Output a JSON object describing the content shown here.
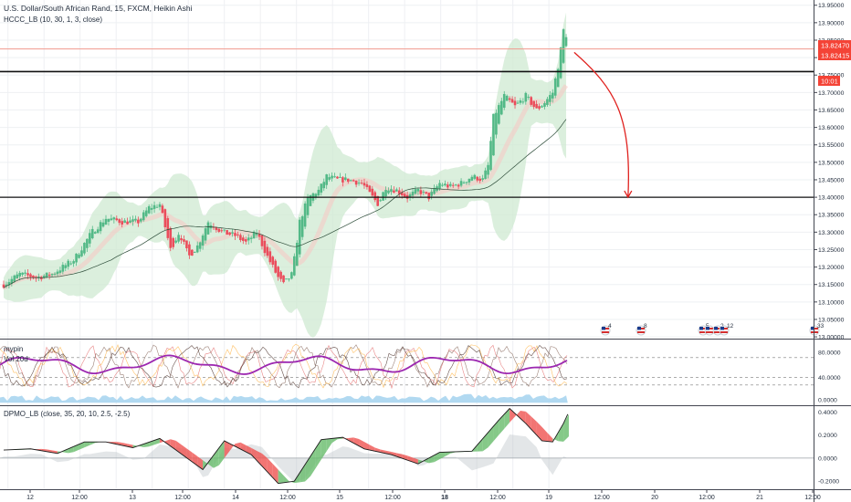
{
  "header": {
    "title": "U.S. Dollar/South African Rand, 15, FXCM, Heikin Ashi",
    "indicator": "HCCC_LB (10, 30, 1, 3, close)"
  },
  "price_badges": {
    "current": "13.82470",
    "second": "13.82415",
    "countdown": "10:01"
  },
  "subpanels": {
    "oscillator_label_1": "mypin",
    "oscillator_label_2": "Vol 20d",
    "dpmo_label": "DPMO_LB (close, 35, 20, 10, 2.5, -2.5)"
  },
  "events": [
    {
      "label": "4"
    },
    {
      "label": "8"
    },
    {
      "label": "5"
    },
    {
      "label": "2"
    },
    {
      "label": "12"
    },
    {
      "label": "33"
    }
  ],
  "colors": {
    "up": "#53b987",
    "down": "#eb4d5c",
    "band": "#cfe9d1",
    "arrow": "#e0211e",
    "level": "#111111",
    "accent_line": "#f19a8e",
    "badge": "#f44336",
    "osc_line": "#9c27b0",
    "volume": "#a8d5ef",
    "text": "#1f2a3a",
    "grid": "#eef0f3"
  },
  "chart_data": {
    "type": "candlestick",
    "style": "Heikin Ashi",
    "symbol": "U.S. Dollar/South African Rand",
    "interval": "15",
    "source": "FXCM",
    "x_ticks": [
      "12",
      "12:00",
      "13",
      "12:00",
      "14",
      "12:00",
      "15",
      "12:00",
      "18",
      "12:00",
      "19",
      "12:00",
      "20",
      "12:00",
      "21",
      "12:00"
    ],
    "price_axis": {
      "ticks": [
        13.95,
        13.9,
        13.85,
        13.8,
        13.75,
        13.7,
        13.65,
        13.6,
        13.55,
        13.5,
        13.45,
        13.4,
        13.35,
        13.3,
        13.25,
        13.2,
        13.15,
        13.1,
        13.05,
        13.0
      ],
      "tick_labels": [
        "13.95000",
        "13.90000",
        "13.85000",
        "13.80000",
        "13.75000",
        "13.70000",
        "13.65000",
        "13.60000",
        "13.55000",
        "13.50000",
        "13.45000",
        "13.40000",
        "13.35000",
        "13.30000",
        "13.25000",
        "13.20000",
        "13.15000",
        "13.10000",
        "13.05000",
        "13.00000"
      ],
      "ylim": [
        12.995,
        13.965
      ]
    },
    "close_path": [
      [
        0.0,
        13.15
      ],
      [
        1.5,
        13.18
      ],
      [
        3.0,
        13.17
      ],
      [
        4.5,
        13.18
      ],
      [
        6.5,
        13.22
      ],
      [
        8.2,
        13.3
      ],
      [
        9.5,
        13.34
      ],
      [
        11.0,
        13.33
      ],
      [
        12.5,
        13.33
      ],
      [
        13.5,
        13.37
      ],
      [
        14.5,
        13.38
      ],
      [
        15.5,
        13.25
      ],
      [
        16.3,
        13.3
      ],
      [
        17.2,
        13.23
      ],
      [
        18.0,
        13.26
      ],
      [
        19.0,
        13.33
      ],
      [
        20.3,
        13.3
      ],
      [
        21.5,
        13.29
      ],
      [
        22.5,
        13.27
      ],
      [
        23.5,
        13.3
      ],
      [
        24.5,
        13.23
      ],
      [
        25.5,
        13.17
      ],
      [
        26.0,
        13.15
      ],
      [
        26.8,
        13.18
      ],
      [
        27.5,
        13.33
      ],
      [
        28.3,
        13.4
      ],
      [
        29.3,
        13.42
      ],
      [
        30.0,
        13.46
      ],
      [
        31.0,
        13.45
      ],
      [
        32.0,
        13.45
      ],
      [
        33.3,
        13.44
      ],
      [
        34.0,
        13.41
      ],
      [
        34.8,
        13.38
      ],
      [
        35.5,
        13.43
      ],
      [
        36.5,
        13.42
      ],
      [
        37.5,
        13.4
      ],
      [
        38.5,
        13.42
      ],
      [
        39.5,
        13.4
      ],
      [
        40.5,
        13.44
      ],
      [
        41.5,
        13.43
      ],
      [
        42.5,
        13.44
      ],
      [
        43.5,
        13.46
      ],
      [
        44.5,
        13.45
      ],
      [
        45.0,
        13.49
      ],
      [
        45.5,
        13.63
      ],
      [
        46.5,
        13.69
      ],
      [
        47.5,
        13.66
      ],
      [
        48.5,
        13.69
      ],
      [
        49.5,
        13.65
      ],
      [
        50.2,
        13.67
      ],
      [
        51.0,
        13.7
      ],
      [
        51.6,
        13.79
      ],
      [
        52.1,
        13.9
      ],
      [
        52.4,
        13.83
      ]
    ],
    "levels": [
      13.76,
      13.4
    ],
    "last_prices": [
      13.8247,
      13.82415
    ],
    "annotation": {
      "type": "arrow",
      "from": [
        53.0,
        13.815
      ],
      "to": [
        58.0,
        13.4
      ]
    },
    "oscillator": {
      "labels": [
        "mypin",
        "Vol 20d"
      ],
      "ticks": [
        0,
        40,
        80
      ],
      "tick_labels": [
        "0.0000",
        "40.0000",
        "80.0000"
      ],
      "ylim": [
        -4,
        100
      ]
    },
    "dpmo": {
      "label": "DPMO_LB (close, 35, 20, 10, 2.5, -2.5)",
      "ticks": [
        -0.2,
        0.0,
        0.2,
        0.4
      ],
      "tick_labels": [
        "-0.2000",
        "0.0000",
        "0.2000",
        "0.4000"
      ],
      "ylim": [
        -0.27,
        0.45
      ],
      "path": [
        [
          0.0,
          0.07
        ],
        [
          2.5,
          0.08
        ],
        [
          5.0,
          0.04
        ],
        [
          7.5,
          0.14
        ],
        [
          9.5,
          0.14
        ],
        [
          12.0,
          0.09
        ],
        [
          14.5,
          0.17
        ],
        [
          16.0,
          0.07
        ],
        [
          18.5,
          -0.1
        ],
        [
          20.5,
          0.15
        ],
        [
          23.0,
          0.03
        ],
        [
          25.5,
          -0.22
        ],
        [
          27.0,
          -0.2
        ],
        [
          29.5,
          0.16
        ],
        [
          31.5,
          0.18
        ],
        [
          33.5,
          0.08
        ],
        [
          36.0,
          0.03
        ],
        [
          38.5,
          -0.05
        ],
        [
          40.5,
          0.05
        ],
        [
          43.5,
          0.06
        ],
        [
          46.0,
          0.33
        ],
        [
          47.0,
          0.43
        ],
        [
          48.5,
          0.3
        ],
        [
          50.0,
          0.15
        ],
        [
          51.0,
          0.14
        ],
        [
          52.0,
          0.3
        ],
        [
          52.4,
          0.38
        ]
      ]
    },
    "grid": true,
    "legend": "top-left"
  }
}
